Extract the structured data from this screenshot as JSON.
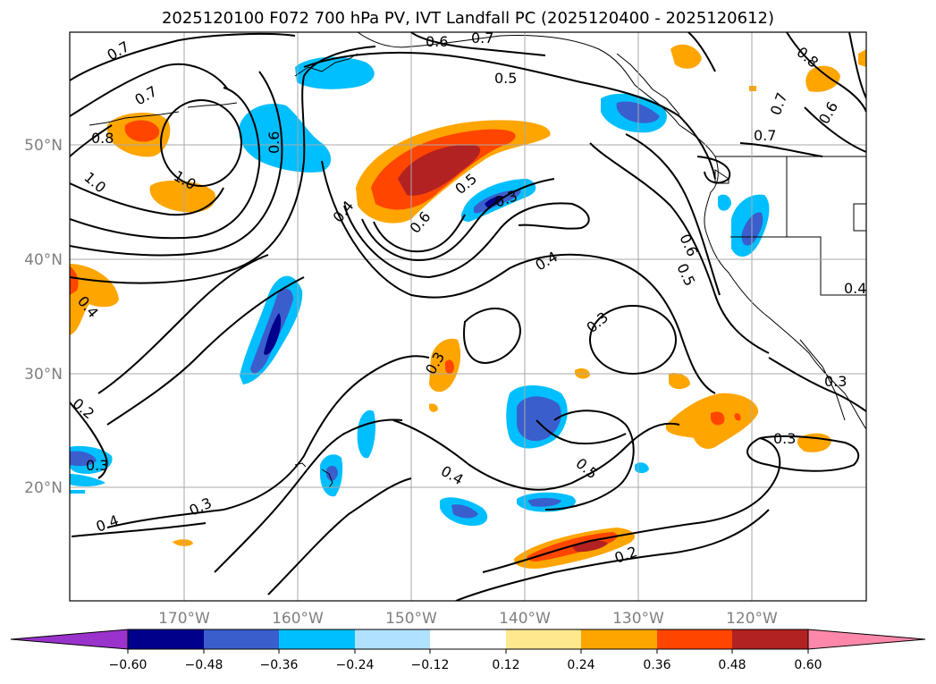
{
  "map": {
    "title": "2025120100 F072 700 hPa PV, IVT Landfall PC (2025120400 - 2025120612)",
    "lon_labels": [
      "170°W",
      "160°W",
      "150°W",
      "140°W",
      "130°W",
      "120°W"
    ],
    "lat_labels": [
      "50°N",
      "40°N",
      "30°N",
      "20°N"
    ],
    "colorbar": {
      "labels": [
        "−0.60",
        "−0.48",
        "−0.36",
        "−0.24",
        "−0.12",
        "0.12",
        "0.24",
        "0.36",
        "0.48",
        "0.60"
      ],
      "colors": [
        "#9933cc",
        "#00008b",
        "#3a5fcd",
        "#00bfff",
        "#b0e2ff",
        "#ffffff",
        "#ffe98c",
        "#ffa500",
        "#ff4500",
        "#b22222",
        "#ff88aa"
      ]
    },
    "contour_labels": [
      "0.7",
      "0.6",
      "0.7",
      "0.5",
      "0.8",
      "0.7",
      "0.6",
      "0.7",
      "0.6",
      "0.8",
      "1.0",
      "1.0",
      "0.7",
      "0.4",
      "0.5",
      "0.3",
      "0.6",
      "0.6",
      "0.5",
      "0.4",
      "0.4",
      "0.3",
      "0.3",
      "0.2",
      "0.3",
      "0.3",
      "0.5",
      "0.4",
      "0.3",
      "0.4",
      "0.2",
      "0.3",
      "0.4"
    ]
  }
}
